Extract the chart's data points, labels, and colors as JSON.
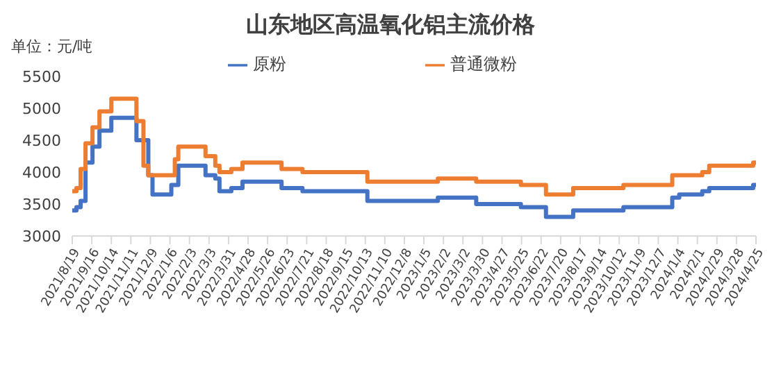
{
  "chart_data": {
    "type": "step",
    "title": "山东地区高温氧化铝主流价格",
    "ylabel": "单位：元/吨",
    "series": [
      {
        "name": "原粉",
        "color": "#4472c4",
        "x": [
          "2021-08-19",
          "2021-08-25",
          "2021-08-31",
          "2021-09-07",
          "2021-09-17",
          "2021-09-27",
          "2021-10-14",
          "2021-11-19",
          "2021-12-06",
          "2021-12-12",
          "2022-01-08",
          "2022-01-18",
          "2022-02-26",
          "2022-03-12",
          "2022-03-18",
          "2022-04-04",
          "2022-04-20",
          "2022-06-15",
          "2022-07-15",
          "2022-10-16",
          "2023-01-25",
          "2023-03-21",
          "2023-05-24",
          "2023-06-29",
          "2023-08-07",
          "2023-10-18",
          "2023-12-27",
          "2024-01-06",
          "2024-02-08",
          "2024-02-18",
          "2024-04-21",
          "2024-04-25"
        ],
        "values": [
          3400,
          3450,
          3550,
          4150,
          4400,
          4650,
          4850,
          4500,
          3950,
          3650,
          3800,
          4100,
          3950,
          3900,
          3700,
          3750,
          3850,
          3750,
          3700,
          3550,
          3600,
          3500,
          3450,
          3300,
          3400,
          3450,
          3600,
          3650,
          3700,
          3750,
          3800,
          3800
        ]
      },
      {
        "name": "普通微粉",
        "color": "#ed7d31",
        "x": [
          "2021-08-19",
          "2021-08-25",
          "2021-08-31",
          "2021-09-07",
          "2021-09-17",
          "2021-09-27",
          "2021-10-14",
          "2021-11-19",
          "2021-11-29",
          "2021-12-06",
          "2022-01-13",
          "2022-01-18",
          "2022-02-26",
          "2022-03-12",
          "2022-03-18",
          "2022-04-04",
          "2022-04-20",
          "2022-06-15",
          "2022-07-15",
          "2022-10-16",
          "2023-01-25",
          "2023-03-21",
          "2023-05-24",
          "2023-06-29",
          "2023-08-07",
          "2023-10-18",
          "2023-12-27",
          "2024-02-08",
          "2024-02-18",
          "2024-04-21",
          "2024-04-25"
        ],
        "values": [
          3700,
          3750,
          4050,
          4450,
          4700,
          4950,
          5150,
          4800,
          4100,
          3950,
          4200,
          4400,
          4250,
          4100,
          4000,
          4050,
          4150,
          4050,
          4000,
          3850,
          3900,
          3850,
          3800,
          3650,
          3750,
          3800,
          3950,
          4000,
          4100,
          4150,
          4150
        ]
      }
    ],
    "xlim": [
      "2021-08-19",
      "2024-04-25"
    ],
    "xticks": [
      {
        "value": "2021-08-19",
        "label": "2021/8/19"
      },
      {
        "value": "2021-09-16",
        "label": "2021/9/16"
      },
      {
        "value": "2021-10-14",
        "label": "2021/10/14"
      },
      {
        "value": "2021-11-11",
        "label": "2021/11/11"
      },
      {
        "value": "2021-12-09",
        "label": "2021/12/9"
      },
      {
        "value": "2022-01-06",
        "label": "2022/1/6"
      },
      {
        "value": "2022-02-03",
        "label": "2022/2/3"
      },
      {
        "value": "2022-03-03",
        "label": "2022/3/3"
      },
      {
        "value": "2022-03-31",
        "label": "2022/3/31"
      },
      {
        "value": "2022-04-28",
        "label": "2022/4/28"
      },
      {
        "value": "2022-05-26",
        "label": "2022/5/26"
      },
      {
        "value": "2022-06-23",
        "label": "2022/6/23"
      },
      {
        "value": "2022-07-21",
        "label": "2022/7/21"
      },
      {
        "value": "2022-08-18",
        "label": "2022/8/18"
      },
      {
        "value": "2022-09-15",
        "label": "2022/9/15"
      },
      {
        "value": "2022-10-13",
        "label": "2022/10/13"
      },
      {
        "value": "2022-11-10",
        "label": "2022/11/10"
      },
      {
        "value": "2022-12-08",
        "label": "2022/12/8"
      },
      {
        "value": "2023-01-05",
        "label": "2023/1/5"
      },
      {
        "value": "2023-02-02",
        "label": "2023/2/2"
      },
      {
        "value": "2023-03-02",
        "label": "2023/3/2"
      },
      {
        "value": "2023-03-30",
        "label": "2023/3/30"
      },
      {
        "value": "2023-04-27",
        "label": "2023/4/27"
      },
      {
        "value": "2023-05-25",
        "label": "2023/5/25"
      },
      {
        "value": "2023-06-22",
        "label": "2023/6/22"
      },
      {
        "value": "2023-07-20",
        "label": "2023/7/20"
      },
      {
        "value": "2023-08-17",
        "label": "2023/8/17"
      },
      {
        "value": "2023-09-14",
        "label": "2023/9/14"
      },
      {
        "value": "2023-10-12",
        "label": "2023/10/12"
      },
      {
        "value": "2023-11-09",
        "label": "2023/11/9"
      },
      {
        "value": "2023-12-07",
        "label": "2023/12/7"
      },
      {
        "value": "2024-01-04",
        "label": "2024/1/4"
      },
      {
        "value": "2024-02-01",
        "label": "2024/2/1"
      },
      {
        "value": "2024-02-29",
        "label": "2024/2/29"
      },
      {
        "value": "2024-03-28",
        "label": "2024/3/28"
      },
      {
        "value": "2024-04-25",
        "label": "2024/4/25"
      }
    ],
    "ylim": [
      3000,
      5500
    ],
    "yticks": [
      3000,
      3500,
      4000,
      4500,
      5000,
      5500
    ],
    "grid": false,
    "legend": "top",
    "marker": "none",
    "line_style": "solid"
  }
}
